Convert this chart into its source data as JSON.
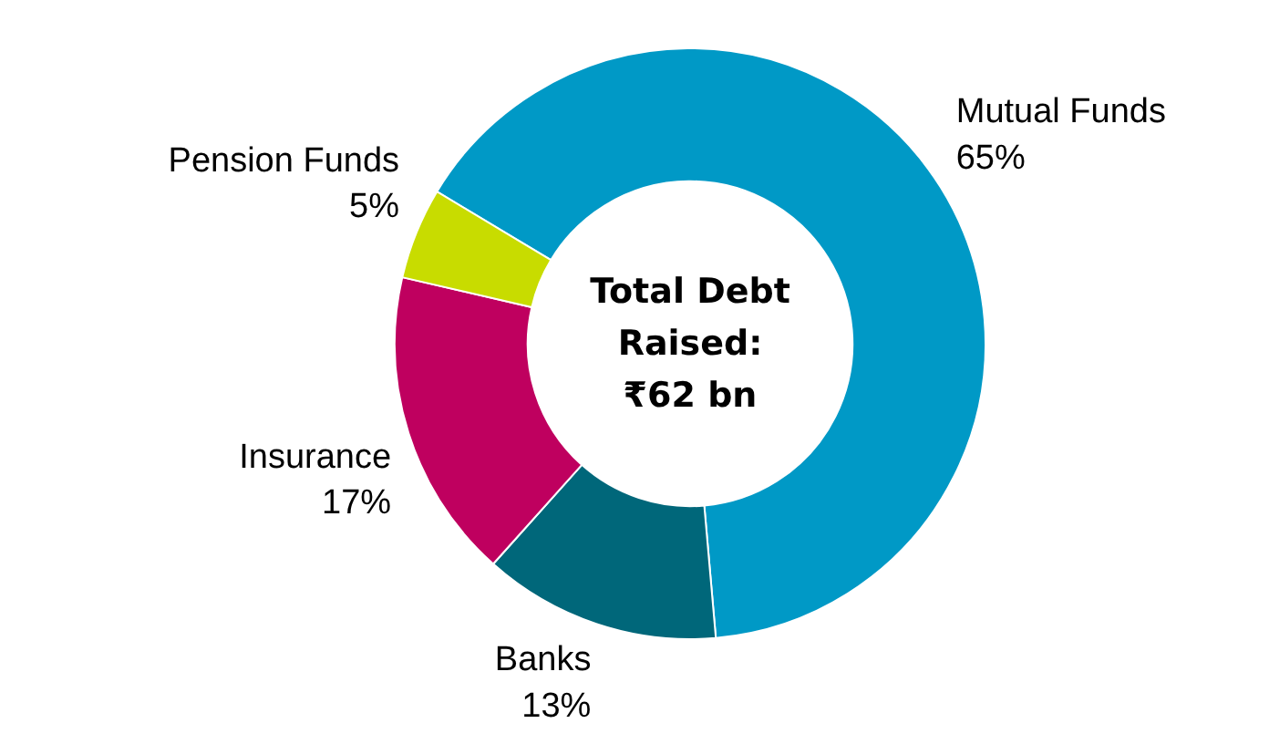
{
  "chart_data": {
    "type": "donut",
    "categories": [
      "Mutual Funds",
      "Banks",
      "Insurance",
      "Pension Funds"
    ],
    "values": [
      65,
      13,
      17,
      5
    ],
    "colors": [
      "#0099c6",
      "#00677a",
      "#bf005f",
      "#c8dc00"
    ],
    "value_labels": [
      "65%",
      "13%",
      "17%",
      "5%"
    ],
    "annotations": [
      "Total Debt\nRaised:\n₹62 bn"
    ]
  }
}
